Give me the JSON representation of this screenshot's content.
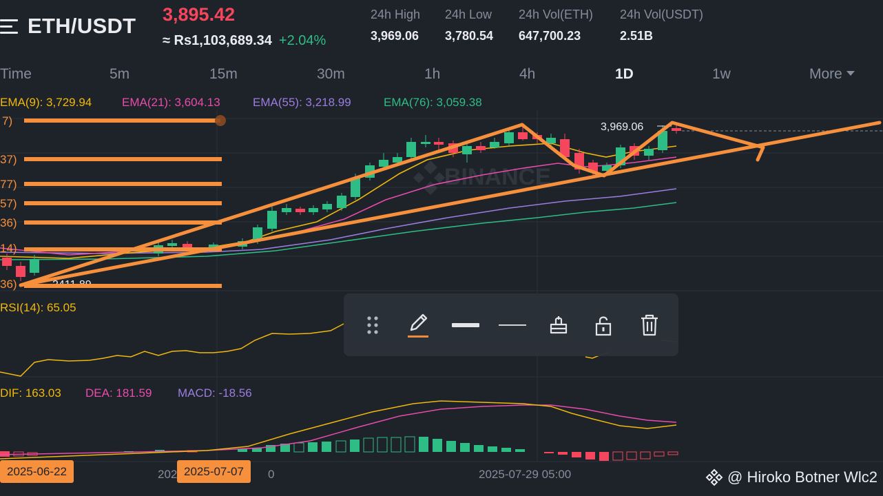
{
  "header": {
    "pair": "ETH/USDT",
    "price": "3,895.42",
    "price_local": "≈ Rs1,103,689.34",
    "change": "+2.04%",
    "stats": [
      {
        "label": "24h High",
        "value": "3,969.06"
      },
      {
        "label": "24h Low",
        "value": "3,780.54"
      },
      {
        "label": "24h Vol(ETH)",
        "value": "647,700.23"
      },
      {
        "label": "24h Vol(USDT)",
        "value": "2.51B"
      }
    ]
  },
  "timeframes": {
    "time": "Time",
    "m5": "5m",
    "m15": "15m",
    "m30": "30m",
    "h1": "1h",
    "h4": "4h",
    "d1": "1D",
    "w1": "1w",
    "more": "More",
    "active": "1D"
  },
  "indicators": {
    "ema9": "EMA(9): 3,729.94",
    "ema21": "EMA(21): 3,604.13",
    "ema55": "EMA(55): 3,218.99",
    "ema76": "EMA(76): 3,059.38",
    "rsi": "RSI(14): 65.05",
    "dif": "DIF: 163.03",
    "dea": "DEA: 181.59",
    "macd": "MACD: -18.56"
  },
  "chart": {
    "high_label": "3,969.06",
    "low_label_partial": "2411.89",
    "watermark_text": "BINANCE",
    "level_labels": [
      "7)",
      "37)",
      "77)",
      "57)",
      "36)",
      "14)",
      "36)"
    ]
  },
  "toolbar": {
    "tools": [
      "drag-handle-icon",
      "pencil-icon",
      "thick-line-icon",
      "thin-line-icon",
      "paint-bucket-icon",
      "unlock-icon",
      "trash-icon"
    ]
  },
  "x_axis": {
    "date_tag_1": "2025-06-22",
    "date_tag_2": "2025-07-07",
    "label_partial_left": "202",
    "label_partial_right": "0",
    "label_3": "2025-07-29 05:00"
  },
  "footer": {
    "watermark": "@ Hiroko Botner Wlc2"
  },
  "colors": {
    "background": "#1e2229",
    "up": "#2ebd85",
    "down": "#f6465d",
    "drawing": "#f7903c",
    "ema9": "#f0b90b",
    "ema21": "#e94cac",
    "ema55": "#9c7de0",
    "ema76": "#2ebd85"
  }
}
